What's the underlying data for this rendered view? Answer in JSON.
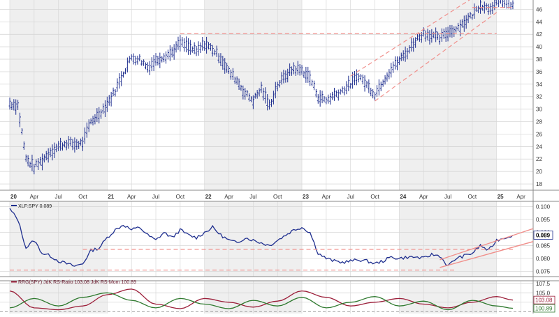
{
  "chart_data": [
    {
      "type": "bar",
      "subtype": "ohlc",
      "title": "",
      "colors": {
        "bars": "#1f2f8f",
        "channel": "#f0908c",
        "background_band": "#efefef"
      },
      "grid": true,
      "y_axis_side": "right",
      "ylim": [
        17,
        47.5
      ],
      "y_ticks": [
        "18",
        "20",
        "22",
        "24",
        "26",
        "28",
        "30",
        "32",
        "34",
        "36",
        "38",
        "40",
        "42",
        "44",
        "46"
      ],
      "x_tick_labels": [
        "20",
        "Apr",
        "Jul",
        "Oct",
        "21",
        "Apr",
        "Jul",
        "Oct",
        "22",
        "Apr",
        "Jul",
        "Oct",
        "23",
        "Apr",
        "Jul",
        "Oct",
        "24",
        "Apr",
        "Jul",
        "Oct",
        "25",
        "Apr"
      ],
      "x_tick_dates": [
        "2020-01",
        "2020-04",
        "2020-07",
        "2020-10",
        "2021-01",
        "2021-04",
        "2021-07",
        "2021-10",
        "2022-01",
        "2022-04",
        "2022-07",
        "2022-10",
        "2023-01",
        "2023-04",
        "2023-07",
        "2023-10",
        "2024-01",
        "2024-04",
        "2024-07",
        "2024-10",
        "2025-01",
        "2025-04"
      ],
      "series": [
        {
          "x": [
            "2020-01",
            "2020-02",
            "2020-03",
            "2020-04",
            "2020-05",
            "2020-06",
            "2020-07",
            "2020-08",
            "2020-09",
            "2020-10",
            "2020-11",
            "2020-12",
            "2021-01",
            "2021-02",
            "2021-03",
            "2021-04",
            "2021-05",
            "2021-06",
            "2021-07",
            "2021-08",
            "2021-09",
            "2021-10",
            "2021-11",
            "2021-12",
            "2022-01",
            "2022-02",
            "2022-03",
            "2022-04",
            "2022-05",
            "2022-06",
            "2022-07",
            "2022-08",
            "2022-09",
            "2022-10",
            "2022-11",
            "2022-12",
            "2023-01",
            "2023-02",
            "2023-03",
            "2023-04",
            "2023-05",
            "2023-06",
            "2023-07",
            "2023-08",
            "2023-09",
            "2023-10",
            "2023-11",
            "2023-12",
            "2024-01",
            "2024-02",
            "2024-03",
            "2024-04",
            "2024-05",
            "2024-06",
            "2024-07",
            "2024-08",
            "2024-09",
            "2024-10",
            "2024-11",
            "2024-12",
            "2025-01",
            "2025-02",
            "2025-03"
          ],
          "y": [
            30.9,
            30.6,
            22.0,
            20.7,
            21.8,
            23.2,
            24.0,
            24.6,
            24.3,
            24.6,
            28.0,
            29.2,
            30.8,
            33.0,
            35.8,
            38.3,
            38.0,
            36.7,
            37.8,
            38.5,
            39.1,
            40.6,
            40.0,
            39.2,
            40.5,
            39.6,
            38.2,
            36.0,
            34.6,
            32.5,
            31.4,
            33.3,
            30.5,
            33.8,
            35.4,
            36.5,
            36.2,
            35.0,
            32.0,
            31.4,
            32.3,
            33.0,
            34.0,
            35.4,
            33.9,
            32.4,
            34.5,
            36.4,
            37.8,
            39.2,
            41.0,
            42.2,
            41.8,
            41.3,
            42.3,
            42.9,
            43.9,
            45.1,
            46.8,
            46.2,
            47.0,
            47.4,
            46.6
          ]
        }
      ],
      "annotations": [
        "horizontal line at 42.1",
        "rising channel 2023-10 to 2025-02"
      ]
    },
    {
      "type": "line",
      "title": "XLF:SPY 0.089",
      "legend_location": "top-left",
      "y_axis_side": "right",
      "ylim": [
        0.073,
        0.102
      ],
      "y_ticks": [
        "0.075",
        "0.080",
        "0.085",
        "0.090",
        "0.095",
        "0.100"
      ],
      "last_value_label": "0.089",
      "series": [
        {
          "name": "XLF:SPY",
          "color": "#1f2f8f",
          "x": [
            "2020-01",
            "2020-02",
            "2020-03",
            "2020-04",
            "2020-05",
            "2020-06",
            "2020-07",
            "2020-08",
            "2020-09",
            "2020-10",
            "2020-11",
            "2020-12",
            "2021-01",
            "2021-02",
            "2021-03",
            "2021-04",
            "2021-05",
            "2021-06",
            "2021-07",
            "2021-08",
            "2021-09",
            "2021-10",
            "2021-11",
            "2021-12",
            "2022-01",
            "2022-02",
            "2022-03",
            "2022-04",
            "2022-05",
            "2022-06",
            "2022-07",
            "2022-08",
            "2022-09",
            "2022-10",
            "2022-11",
            "2022-12",
            "2023-01",
            "2023-02",
            "2023-03",
            "2023-04",
            "2023-05",
            "2023-06",
            "2023-07",
            "2023-08",
            "2023-09",
            "2023-10",
            "2023-11",
            "2023-12",
            "2024-01",
            "2024-02",
            "2024-03",
            "2024-04",
            "2024-05",
            "2024-06",
            "2024-07",
            "2024-08",
            "2024-09",
            "2024-10",
            "2024-11",
            "2024-12",
            "2025-01",
            "2025-02",
            "2025-03"
          ],
          "y": [
            0.099,
            0.095,
            0.084,
            0.087,
            0.082,
            0.081,
            0.079,
            0.078,
            0.077,
            0.078,
            0.083,
            0.084,
            0.088,
            0.091,
            0.093,
            0.091,
            0.092,
            0.089,
            0.087,
            0.09,
            0.088,
            0.091,
            0.089,
            0.088,
            0.09,
            0.092,
            0.089,
            0.087,
            0.086,
            0.088,
            0.087,
            0.086,
            0.085,
            0.087,
            0.089,
            0.091,
            0.092,
            0.09,
            0.082,
            0.08,
            0.079,
            0.0785,
            0.079,
            0.0795,
            0.079,
            0.078,
            0.079,
            0.0805,
            0.08,
            0.0805,
            0.0805,
            0.08,
            0.0815,
            0.081,
            0.077,
            0.08,
            0.081,
            0.082,
            0.085,
            0.083,
            0.087,
            0.088,
            0.089
          ]
        }
      ],
      "annotations": [
        "horizontal line at 0.0835",
        "horizontal line at 0.0755",
        "rising channel 2024-06 to 2025-03"
      ]
    },
    {
      "type": "line",
      "title": "RRG(SPY) JdK RS-Ratio 103.08 JdK RS-Mom 100.89",
      "legend_location": "top-left",
      "y_axis_side": "right",
      "ylim": [
        99.5,
        108.2
      ],
      "y_ticks": [
        "102.5",
        "105.0",
        "107.5"
      ],
      "last_value_labels": [
        "103.08",
        "100.89"
      ],
      "series": [
        {
          "name": "JdK RS-Ratio",
          "color": "#9c1f3a",
          "x": [
            "2020-01",
            "2020-04",
            "2020-07",
            "2020-10",
            "2021-01",
            "2021-04",
            "2021-07",
            "2021-10",
            "2022-01",
            "2022-04",
            "2022-07",
            "2022-10",
            "2023-01",
            "2023-04",
            "2023-07",
            "2023-10",
            "2024-01",
            "2024-04",
            "2024-07",
            "2024-10",
            "2025-01",
            "2025-03"
          ],
          "y": [
            105.5,
            101.0,
            100.5,
            101.5,
            104.5,
            106.0,
            102.0,
            100.8,
            103.5,
            102.5,
            101.2,
            102.8,
            105.5,
            103.8,
            101.5,
            102.5,
            103.5,
            102.0,
            101.0,
            102.5,
            104.0,
            103.08
          ]
        },
        {
          "name": "JdK RS-Mom",
          "color": "#2f7a2f",
          "x": [
            "2020-01",
            "2020-04",
            "2020-07",
            "2020-10",
            "2021-01",
            "2021-04",
            "2021-07",
            "2021-10",
            "2022-01",
            "2022-04",
            "2022-07",
            "2022-10",
            "2023-01",
            "2023-04",
            "2023-07",
            "2023-10",
            "2024-01",
            "2024-04",
            "2024-07",
            "2024-10",
            "2025-01",
            "2025-03"
          ],
          "y": [
            101.0,
            103.5,
            101.5,
            103.8,
            105.0,
            103.0,
            101.0,
            103.5,
            102.0,
            100.8,
            103.0,
            101.5,
            103.8,
            101.0,
            102.5,
            104.0,
            101.5,
            102.8,
            100.5,
            103.0,
            101.5,
            100.89
          ]
        }
      ]
    }
  ]
}
